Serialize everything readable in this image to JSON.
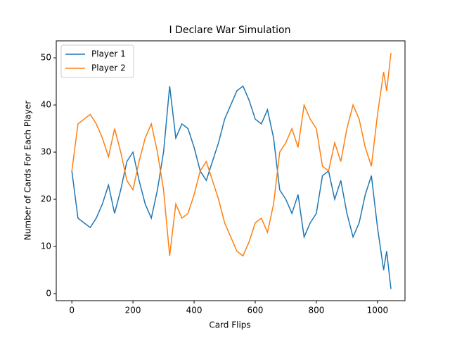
{
  "chart_data": {
    "type": "line",
    "title": "I Declare War Simulation",
    "xlabel": "Card Flips",
    "ylabel": "Number of Cards For Each Player",
    "x": [
      0,
      20,
      40,
      60,
      80,
      100,
      120,
      140,
      160,
      180,
      200,
      220,
      240,
      260,
      280,
      300,
      320,
      340,
      360,
      380,
      400,
      420,
      440,
      460,
      480,
      500,
      520,
      540,
      560,
      580,
      600,
      620,
      640,
      660,
      680,
      700,
      720,
      740,
      760,
      780,
      800,
      820,
      840,
      860,
      880,
      900,
      920,
      940,
      960,
      980,
      1000,
      1020,
      1030,
      1044
    ],
    "series": [
      {
        "name": "Player 1",
        "color": "#1f77b4",
        "values": [
          26,
          16,
          15,
          14,
          16,
          19,
          23,
          17,
          22,
          28,
          30,
          24,
          19,
          16,
          22,
          30,
          44,
          33,
          36,
          35,
          31,
          26,
          24,
          28,
          32,
          37,
          40,
          43,
          44,
          41,
          37,
          36,
          39,
          33,
          22,
          20,
          17,
          21,
          12,
          15,
          17,
          25,
          26,
          20,
          24,
          17,
          12,
          15,
          21,
          25,
          14,
          5,
          9,
          1
        ]
      },
      {
        "name": "Player 2",
        "color": "#ff7f0e",
        "values": [
          26,
          36,
          37,
          38,
          36,
          33,
          29,
          35,
          30,
          24,
          22,
          28,
          33,
          36,
          30,
          22,
          8,
          19,
          16,
          17,
          21,
          26,
          28,
          24,
          20,
          15,
          12,
          9,
          8,
          11,
          15,
          16,
          13,
          19,
          30,
          32,
          35,
          31,
          40,
          37,
          35,
          27,
          26,
          32,
          28,
          35,
          40,
          37,
          31,
          27,
          38,
          47,
          43,
          51
        ]
      }
    ],
    "xlim": [
      -51,
      1090
    ],
    "ylim": [
      -1.5,
      53.6
    ],
    "xticks": [
      0,
      200,
      400,
      600,
      800,
      1000
    ],
    "yticks": [
      0,
      10,
      20,
      30,
      40,
      50
    ],
    "legend": "upper left"
  }
}
